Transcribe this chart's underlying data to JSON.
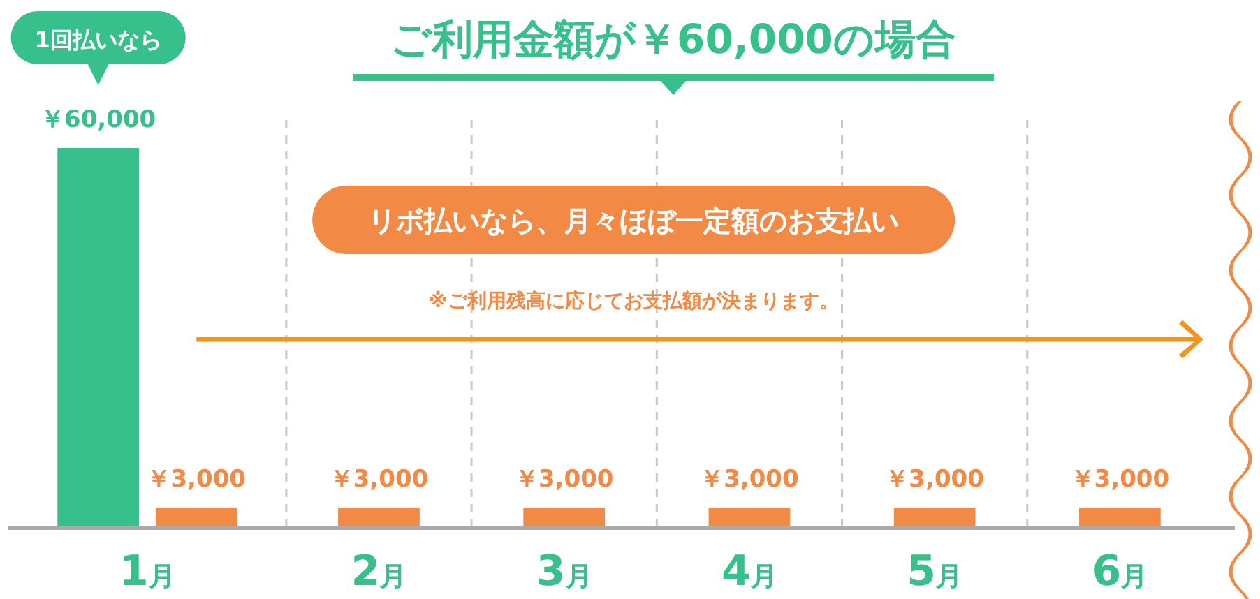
{
  "chart_data": {
    "type": "bar",
    "title": "ご利用金額が￥60,000の場合",
    "categories": [
      "1月",
      "2月",
      "3月",
      "4月",
      "5月",
      "6月"
    ],
    "series": [
      {
        "name": "1回払いなら",
        "color": "#38c08c",
        "values": [
          60000,
          null,
          null,
          null,
          null,
          null
        ],
        "value_labels": [
          "￥60,000",
          null,
          null,
          null,
          null,
          null
        ]
      },
      {
        "name": "リボ払いなら、月々ほぼ一定額のお支払い",
        "color": "#f28a46",
        "values": [
          3000,
          3000,
          3000,
          3000,
          3000,
          3000
        ],
        "value_labels": [
          "￥3,000",
          "￥3,000",
          "￥3,000",
          "￥3,000",
          "￥3,000",
          "￥3,000"
        ]
      }
    ],
    "annotations": [
      "※ご利用残高に応じてお支払額が決まります。"
    ],
    "grid": "x",
    "legend": false
  }
}
